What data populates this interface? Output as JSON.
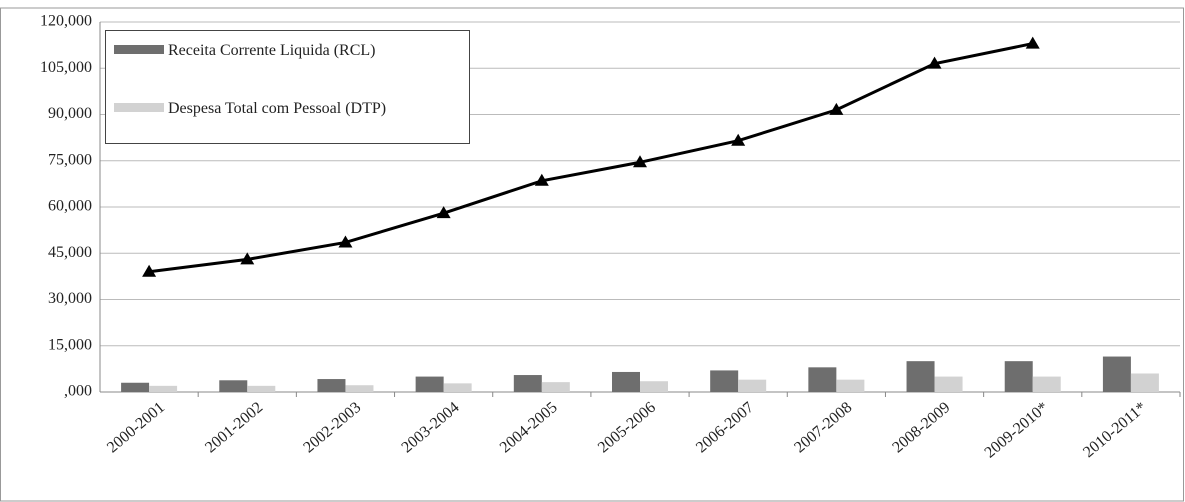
{
  "chart_data": {
    "type": "bar-line",
    "categories": [
      "2000-2001",
      "2001-2002",
      "2002-2003",
      "2003-2004",
      "2004-2005",
      "2005-2006",
      "2006-2007",
      "2007-2008",
      "2008-2009",
      "2009-2010*",
      "2010-2011*"
    ],
    "series": [
      {
        "name": "Receita Corrente Liquida (RCL)",
        "type": "bar",
        "color": "#6e6e6e",
        "values": [
          3000,
          3800,
          4200,
          5000,
          5500,
          6500,
          7000,
          8000,
          10000,
          10000,
          11500
        ]
      },
      {
        "name": "Despesa Total com Pessoal (DTP)",
        "type": "bar",
        "color": "#d2d2d2",
        "values": [
          2000,
          2000,
          2200,
          2800,
          3200,
          3500,
          4000,
          4000,
          5000,
          5000,
          6000
        ]
      },
      {
        "type": "line",
        "color": "#000000",
        "values": [
          39000,
          43000,
          48500,
          58000,
          68500,
          74500,
          81500,
          91500,
          106500,
          113000,
          null
        ]
      }
    ],
    "ylim": [
      0,
      120000
    ],
    "yticks": [
      {
        "value": 0,
        "label": ",000"
      },
      {
        "value": 15000,
        "label": "15,000"
      },
      {
        "value": 30000,
        "label": "30,000"
      },
      {
        "value": 45000,
        "label": "45,000"
      },
      {
        "value": 60000,
        "label": "60,000"
      },
      {
        "value": 75000,
        "label": "75,000"
      },
      {
        "value": 90000,
        "label": "90,000"
      },
      {
        "value": 105000,
        "label": "105,000"
      },
      {
        "value": 120000,
        "label": "120,000"
      }
    ],
    "grid": true
  }
}
